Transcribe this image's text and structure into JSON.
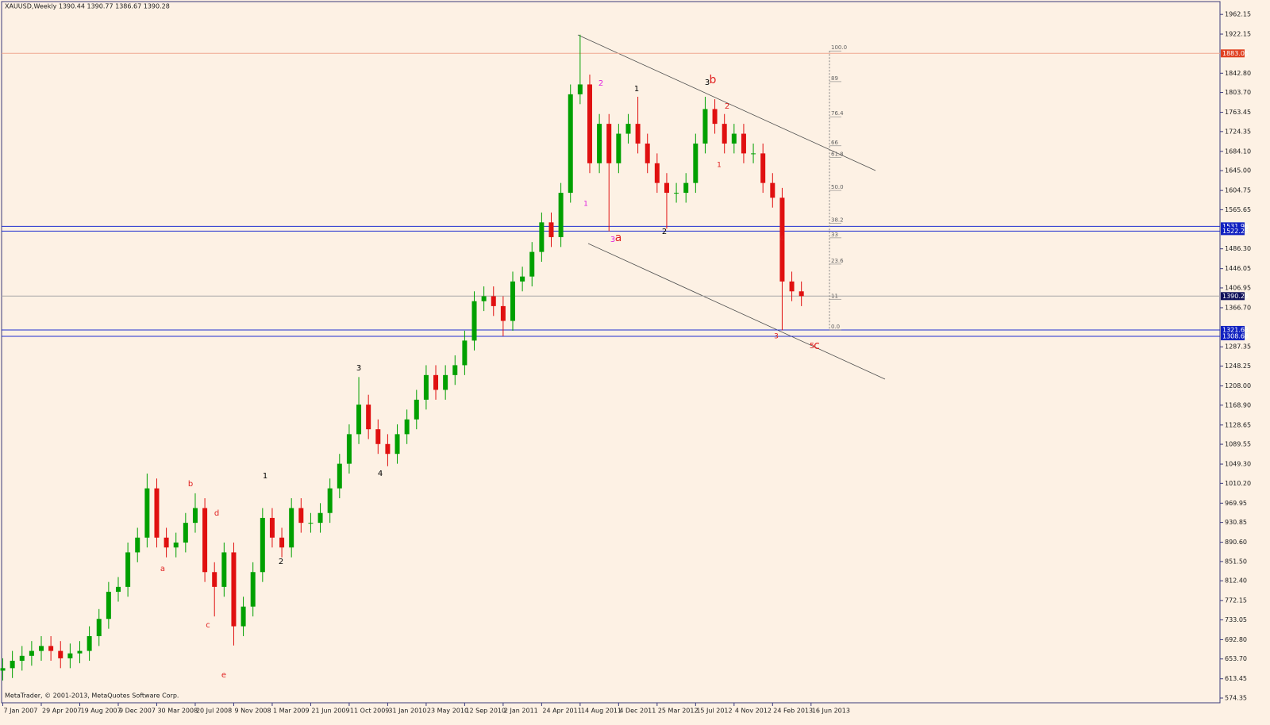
{
  "chart_data": {
    "type": "candlestick",
    "title": "XAUUSD,Weekly  1390.44 1390.77 1386.67 1390.28",
    "footer": "MetaTrader, © 2001-2013, MetaQuotes Software Corp.",
    "background": "#fdf1e4",
    "up_color": "#00a000",
    "down_color": "#e01010",
    "x": [
      0,
      4,
      8,
      12,
      16,
      20,
      24,
      28,
      32,
      36,
      40,
      44,
      48,
      52,
      56,
      60,
      64,
      68,
      72,
      76,
      80,
      84,
      88,
      92,
      96,
      100,
      104,
      108,
      112,
      116,
      120,
      124,
      128,
      132,
      136,
      140,
      144,
      148,
      152,
      156,
      160,
      164,
      168,
      172,
      176,
      180,
      184,
      188,
      192,
      196,
      200,
      204,
      208,
      212,
      216,
      220,
      224,
      228,
      232,
      236,
      240,
      244,
      248,
      252,
      256,
      260,
      264,
      268,
      272,
      276,
      280,
      284,
      288,
      292,
      296,
      300,
      304,
      308,
      312,
      316,
      320,
      324,
      328,
      332
    ],
    "open": [
      630,
      635,
      650,
      660,
      670,
      680,
      670,
      655,
      665,
      670,
      700,
      735,
      790,
      800,
      870,
      900,
      1000,
      900,
      880,
      890,
      930,
      960,
      830,
      800,
      870,
      720,
      760,
      830,
      940,
      900,
      880,
      960,
      930,
      930,
      950,
      1000,
      1050,
      1110,
      1170,
      1120,
      1090,
      1070,
      1110,
      1140,
      1180,
      1230,
      1200,
      1230,
      1250,
      1300,
      1380,
      1390,
      1370,
      1340,
      1420,
      1430,
      1480,
      1540,
      1510,
      1600,
      1800,
      1820,
      1660,
      1740,
      1660,
      1720,
      1740,
      1700,
      1660,
      1620,
      1600,
      1600,
      1620,
      1700,
      1770,
      1740,
      1700,
      1720,
      1680,
      1680,
      1620,
      1590,
      1420,
      1400
    ],
    "high": [
      655,
      670,
      680,
      690,
      700,
      700,
      690,
      685,
      690,
      720,
      755,
      810,
      820,
      890,
      920,
      1030,
      1020,
      920,
      910,
      950,
      990,
      980,
      850,
      890,
      890,
      780,
      850,
      960,
      960,
      920,
      980,
      980,
      950,
      970,
      1020,
      1070,
      1130,
      1226,
      1190,
      1140,
      1110,
      1130,
      1160,
      1200,
      1250,
      1250,
      1250,
      1270,
      1320,
      1400,
      1410,
      1410,
      1390,
      1440,
      1450,
      1500,
      1560,
      1560,
      1620,
      1820,
      1921,
      1840,
      1760,
      1760,
      1740,
      1760,
      1795,
      1720,
      1680,
      1640,
      1620,
      1640,
      1720,
      1795,
      1790,
      1760,
      1740,
      1740,
      1700,
      1700,
      1640,
      1610,
      1440,
      1420
    ],
    "low": [
      610,
      615,
      630,
      640,
      650,
      650,
      635,
      635,
      645,
      650,
      680,
      715,
      770,
      780,
      850,
      880,
      880,
      860,
      860,
      870,
      910,
      810,
      740,
      780,
      681,
      700,
      740,
      810,
      880,
      860,
      860,
      910,
      910,
      910,
      930,
      980,
      1030,
      1090,
      1100,
      1070,
      1045,
      1050,
      1090,
      1120,
      1160,
      1180,
      1180,
      1210,
      1230,
      1280,
      1360,
      1350,
      1309,
      1320,
      1400,
      1410,
      1460,
      1490,
      1490,
      1580,
      1780,
      1640,
      1640,
      1522,
      1640,
      1700,
      1680,
      1640,
      1600,
      1527,
      1580,
      1580,
      1600,
      1680,
      1720,
      1680,
      1680,
      1660,
      1660,
      1600,
      1570,
      1321,
      1380,
      1370
    ],
    "close": [
      635,
      650,
      660,
      670,
      680,
      670,
      655,
      665,
      670,
      700,
      735,
      790,
      800,
      870,
      900,
      1000,
      900,
      880,
      890,
      930,
      960,
      830,
      800,
      870,
      720,
      760,
      830,
      940,
      900,
      880,
      960,
      930,
      930,
      950,
      1000,
      1050,
      1110,
      1170,
      1120,
      1090,
      1070,
      1110,
      1140,
      1180,
      1230,
      1200,
      1230,
      1250,
      1300,
      1380,
      1390,
      1370,
      1340,
      1420,
      1430,
      1480,
      1540,
      1510,
      1600,
      1800,
      1820,
      1660,
      1740,
      1660,
      1720,
      1740,
      1700,
      1660,
      1620,
      1600,
      1600,
      1620,
      1700,
      1770,
      1740,
      1700,
      1720,
      1680,
      1680,
      1620,
      1590,
      1420,
      1400,
      1390.28
    ],
    "xlim": [
      -0.5,
      506
    ],
    "ylim": [
      564.7,
      1988.2
    ],
    "xticks": [
      {
        "value": 0,
        "label": "7 Jan 2007"
      },
      {
        "value": 16,
        "label": "29 Apr 2007"
      },
      {
        "value": 32,
        "label": "19 Aug 2007"
      },
      {
        "value": 48,
        "label": "9 Dec 2007"
      },
      {
        "value": 64,
        "label": "30 Mar 2008"
      },
      {
        "value": 80,
        "label": "20 Jul 2008"
      },
      {
        "value": 96,
        "label": "9 Nov 2008"
      },
      {
        "value": 112,
        "label": "1 Mar 2009"
      },
      {
        "value": 128,
        "label": "21 Jun 2009"
      },
      {
        "value": 144,
        "label": "11 Oct 2009"
      },
      {
        "value": 160,
        "label": "31 Jan 2010"
      },
      {
        "value": 176,
        "label": "23 May 2010"
      },
      {
        "value": 192,
        "label": "12 Sep 2010"
      },
      {
        "value": 208,
        "label": "2 Jan 2011"
      },
      {
        "value": 224,
        "label": "24 Apr 2011"
      },
      {
        "value": 240,
        "label": "14 Aug 2011"
      },
      {
        "value": 256,
        "label": "4 Dec 2011"
      },
      {
        "value": 272,
        "label": "25 Mar 2012"
      },
      {
        "value": 288,
        "label": "15 Jul 2012"
      },
      {
        "value": 304,
        "label": "4 Nov 2012"
      },
      {
        "value": 320,
        "label": "24 Feb 2013"
      },
      {
        "value": 336,
        "label": "16 Jun 2013"
      }
    ],
    "yticks": [
      1962.15,
      1922.15,
      {
        "value": 1842.8,
        "label": "1842.80"
      },
      {
        "value": 1803.7,
        "label": "1803.70"
      },
      1763.45,
      1724.35,
      {
        "value": 1684.1,
        "label": "1684.10"
      },
      {
        "value": 1645,
        "label": "1645.00"
      },
      1604.75,
      1565.65,
      {
        "value": 1486.3,
        "label": "1486.30"
      },
      1446.05,
      1406.95,
      {
        "value": 1366.7,
        "label": "1366.70"
      },
      1287.35,
      1248.25,
      {
        "value": 1208,
        "label": "1208.00"
      },
      {
        "value": 1168.9,
        "label": "1168.90"
      },
      1128.65,
      1089.55,
      {
        "value": 1049.3,
        "label": "1049.30"
      },
      {
        "value": 1010.2,
        "label": "1010.20"
      },
      969.95,
      930.85,
      {
        "value": 890.6,
        "label": "890.60"
      },
      {
        "value": 851.5,
        "label": "851.50"
      },
      {
        "value": 812.4,
        "label": "812.40"
      },
      772.15,
      733.05,
      {
        "value": 692.8,
        "label": "692.80"
      },
      {
        "value": 653.7,
        "label": "653.70"
      },
      613.45,
      574.35
    ],
    "levels": [
      {
        "value": 1883.05,
        "line_color": "#f0a890",
        "tag_color": "#e04020"
      },
      {
        "value": 1531.96,
        "line_color": "#2030d0",
        "tag_color": "#1020c0"
      },
      {
        "value": 1522.25,
        "line_color": "#2030d0",
        "tag_color": "#1020c0"
      },
      {
        "value": 1390.28,
        "line_color": "#a8a8a8",
        "tag_color": "#10105a"
      },
      {
        "value": 1321.63,
        "line_color": "#2030d0",
        "tag_color": "#1020c0"
      },
      {
        "value": 1308.68,
        "line_color": "#2030d0",
        "tag_color": "#1020c0"
      }
    ],
    "fibonacci": {
      "low": 1321.63,
      "high": 1888,
      "levels": [
        {
          "value": 100,
          "label": "100.0"
        },
        89,
        76.4,
        66,
        61.8,
        {
          "value": 50,
          "label": "50.0"
        },
        38.2,
        33,
        23.6,
        11,
        {
          "value": 0,
          "label": "0.0"
        }
      ]
    },
    "annotations": [
      {
        "text": "b",
        "color": "#e02020"
      },
      {
        "text": "a",
        "color": "#e02020"
      },
      {
        "text": "d",
        "color": "#e02020"
      },
      {
        "text": "c",
        "color": "#e02020"
      },
      {
        "text": "e",
        "color": "#e02020"
      },
      {
        "text": "1",
        "color": "#000000"
      },
      {
        "text": "2",
        "color": "#000000"
      },
      {
        "text": "3",
        "color": "#000000"
      },
      {
        "text": "4",
        "color": "#000000"
      },
      {
        "text": "1",
        "color": "#e020e0"
      },
      {
        "text": "2",
        "color": "#e020e0"
      },
      {
        "text": "3",
        "color": "#e020e0"
      },
      {
        "text": "a",
        "color": "#e02020"
      },
      {
        "text": "1",
        "color": "#000000"
      },
      {
        "text": "2",
        "color": "#000000"
      },
      {
        "text": "3",
        "color": "#000000"
      },
      {
        "text": "b",
        "color": "#e02020"
      },
      {
        "text": "2",
        "color": "#e02020"
      },
      {
        "text": "1",
        "color": "#e02020"
      },
      {
        "text": "4",
        "color": "#e02020"
      },
      {
        "text": "3",
        "color": "#e02020"
      },
      {
        "text": "5",
        "color": "#e02020"
      },
      {
        "text": "c",
        "color": "#e02020"
      }
    ]
  }
}
